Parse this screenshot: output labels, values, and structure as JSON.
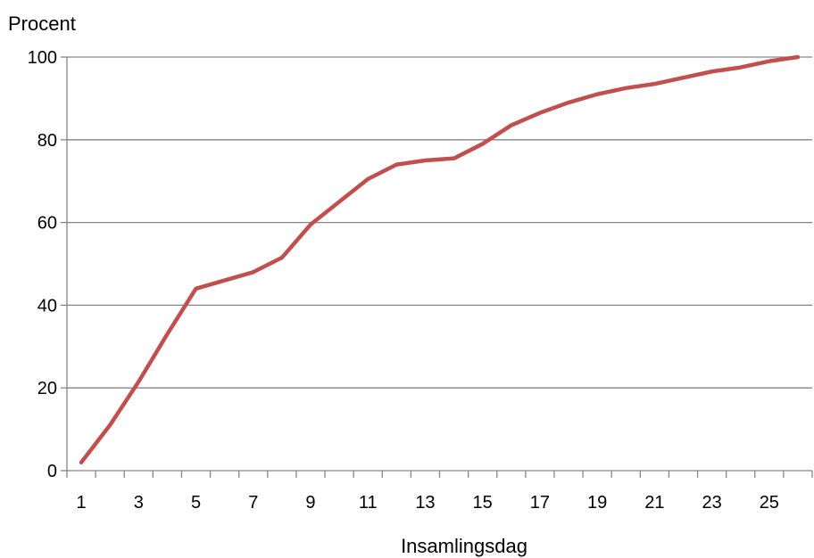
{
  "chart_data": {
    "type": "line",
    "title": "",
    "ylabel": "Procent",
    "xlabel": "Insamlingsdag",
    "ylim": [
      0,
      100
    ],
    "yticks": [
      0,
      20,
      40,
      60,
      80,
      100
    ],
    "x": [
      1,
      2,
      3,
      4,
      5,
      6,
      7,
      8,
      9,
      10,
      11,
      12,
      13,
      14,
      15,
      16,
      17,
      18,
      19,
      20,
      21,
      22,
      23,
      24,
      25,
      26
    ],
    "xtick_labels": [
      "1",
      "3",
      "5",
      "7",
      "9",
      "11",
      "13",
      "15",
      "17",
      "19",
      "21",
      "23",
      "25"
    ],
    "series": [
      {
        "values": [
          2,
          11,
          21.5,
          33,
          44,
          46,
          48,
          51.5,
          59.5,
          65,
          70.5,
          74,
          75,
          75.5,
          79,
          83.5,
          86.5,
          89,
          91,
          92.5,
          93.5,
          95,
          96.5,
          97.5,
          99,
          100
        ],
        "color": "#c0504d"
      }
    ],
    "grid": true,
    "legend": "none"
  }
}
